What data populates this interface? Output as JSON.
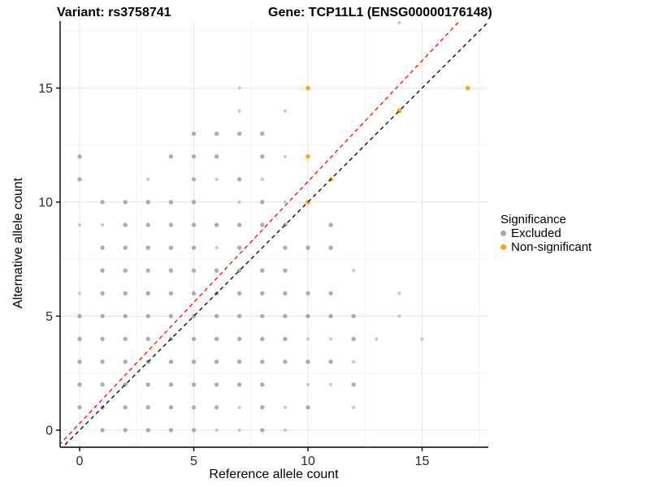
{
  "header": {
    "title_left": "Variant: rs3758741",
    "title_right": "Gene: TCP11L1 (ENSG00000176148)"
  },
  "axes": {
    "x_label": "Reference allele count",
    "y_label": "Alternative allele count",
    "x_ticks": [
      0,
      5,
      10,
      15
    ],
    "y_ticks": [
      0,
      5,
      10,
      15
    ]
  },
  "legend": {
    "title": "Significance",
    "items": [
      {
        "label": "Excluded",
        "color": "#a6a6a6"
      },
      {
        "label": "Non-significant",
        "color": "#FFA500"
      }
    ]
  },
  "colors": {
    "excluded": "#999999",
    "excluded_light": "#bcbcbc",
    "non_significant": "#FFA500",
    "identity_line": "#000000",
    "fit_line": "#FF0000",
    "grid_major": "#e4e4e4",
    "grid_minor": "#f2f2f2",
    "axis_line": "#000000",
    "tick_label": "#2b2b2b"
  },
  "chart_data": {
    "type": "scatter",
    "title": "Variant: rs3758741 — Gene: TCP11L1 (ENSG00000176148)",
    "xlabel": "Reference allele count",
    "ylabel": "Alternative allele count",
    "xlim": [
      -0.9,
      17.9
    ],
    "ylim": [
      -0.75,
      17.9
    ],
    "grid": "on",
    "legend_position": "right",
    "lines": [
      {
        "name": "identity",
        "slope": 1.0,
        "intercept": 0.0,
        "style": "dashed",
        "color": "#000000"
      },
      {
        "name": "fit",
        "slope": 1.06,
        "intercept": 0.3,
        "style": "dashed",
        "color": "#FF0000"
      }
    ],
    "series": [
      {
        "name": "Excluded",
        "points": [
          [
            1,
            0,
            "n"
          ],
          [
            2,
            0,
            "n"
          ],
          [
            3,
            0,
            "n"
          ],
          [
            4,
            0,
            "n"
          ],
          [
            5,
            0,
            "n"
          ],
          [
            6,
            0,
            "s"
          ],
          [
            7,
            0,
            "s"
          ],
          [
            8,
            0,
            "n"
          ],
          [
            9,
            0,
            "s"
          ],
          [
            0,
            1,
            "n"
          ],
          [
            1,
            1,
            "n"
          ],
          [
            2,
            1,
            "n"
          ],
          [
            3,
            1,
            "n"
          ],
          [
            4,
            1,
            "n"
          ],
          [
            5,
            1,
            "n"
          ],
          [
            6,
            1,
            "n"
          ],
          [
            7,
            1,
            "s"
          ],
          [
            8,
            1,
            "n"
          ],
          [
            9,
            1,
            "s"
          ],
          [
            10,
            1,
            "n"
          ],
          [
            12,
            1,
            "s"
          ],
          [
            0,
            2,
            "n"
          ],
          [
            1,
            2,
            "n"
          ],
          [
            2,
            2,
            "n"
          ],
          [
            3,
            2,
            "n"
          ],
          [
            4,
            2,
            "n"
          ],
          [
            5,
            2,
            "n"
          ],
          [
            6,
            2,
            "n"
          ],
          [
            7,
            2,
            "n"
          ],
          [
            8,
            2,
            "n"
          ],
          [
            10,
            2,
            "s"
          ],
          [
            11,
            2,
            "s"
          ],
          [
            12,
            2,
            "n"
          ],
          [
            0,
            3,
            "n"
          ],
          [
            1,
            3,
            "n"
          ],
          [
            2,
            3,
            "n"
          ],
          [
            3,
            3,
            "n"
          ],
          [
            4,
            3,
            "n"
          ],
          [
            5,
            3,
            "n"
          ],
          [
            6,
            3,
            "n"
          ],
          [
            7,
            3,
            "n"
          ],
          [
            8,
            3,
            "n"
          ],
          [
            9,
            3,
            "n"
          ],
          [
            10,
            3,
            "n"
          ],
          [
            11,
            3,
            "n"
          ],
          [
            12,
            3,
            "s"
          ],
          [
            0,
            4,
            "n"
          ],
          [
            1,
            4,
            "n"
          ],
          [
            2,
            4,
            "n"
          ],
          [
            3,
            4,
            "n"
          ],
          [
            4,
            4,
            "n"
          ],
          [
            5,
            4,
            "n"
          ],
          [
            6,
            4,
            "n"
          ],
          [
            7,
            4,
            "n"
          ],
          [
            8,
            4,
            "n"
          ],
          [
            9,
            4,
            "n"
          ],
          [
            10,
            4,
            "s"
          ],
          [
            11,
            4,
            "s"
          ],
          [
            12,
            4,
            "n"
          ],
          [
            13,
            4,
            "s"
          ],
          [
            15,
            4,
            "s"
          ],
          [
            0,
            5,
            "n"
          ],
          [
            1,
            5,
            "n"
          ],
          [
            2,
            5,
            "n"
          ],
          [
            3,
            5,
            "n"
          ],
          [
            4,
            5,
            "n"
          ],
          [
            5,
            5,
            "n"
          ],
          [
            6,
            5,
            "n"
          ],
          [
            7,
            5,
            "n"
          ],
          [
            8,
            5,
            "n"
          ],
          [
            9,
            5,
            "n"
          ],
          [
            10,
            5,
            "n"
          ],
          [
            11,
            5,
            "n"
          ],
          [
            12,
            5,
            "n"
          ],
          [
            14,
            5,
            "s"
          ],
          [
            0,
            6,
            "s"
          ],
          [
            1,
            6,
            "n"
          ],
          [
            2,
            6,
            "n"
          ],
          [
            3,
            6,
            "n"
          ],
          [
            4,
            6,
            "n"
          ],
          [
            5,
            6,
            "n"
          ],
          [
            6,
            6,
            "n"
          ],
          [
            7,
            6,
            "n"
          ],
          [
            8,
            6,
            "n"
          ],
          [
            9,
            6,
            "n"
          ],
          [
            10,
            6,
            "n"
          ],
          [
            11,
            6,
            "n"
          ],
          [
            14,
            6,
            "s"
          ],
          [
            1,
            7,
            "n"
          ],
          [
            2,
            7,
            "n"
          ],
          [
            3,
            7,
            "n"
          ],
          [
            4,
            7,
            "n"
          ],
          [
            5,
            7,
            "n"
          ],
          [
            6,
            7,
            "n"
          ],
          [
            7,
            7,
            "n"
          ],
          [
            8,
            7,
            "n"
          ],
          [
            9,
            7,
            "n"
          ],
          [
            12,
            7,
            "s"
          ],
          [
            1,
            8,
            "n"
          ],
          [
            2,
            8,
            "n"
          ],
          [
            3,
            8,
            "n"
          ],
          [
            4,
            8,
            "n"
          ],
          [
            5,
            8,
            "n"
          ],
          [
            6,
            8,
            "s"
          ],
          [
            7,
            8,
            "n"
          ],
          [
            9,
            8,
            "n"
          ],
          [
            10,
            8,
            "n"
          ],
          [
            11,
            8,
            "n"
          ],
          [
            0,
            9,
            "s"
          ],
          [
            1,
            9,
            "s"
          ],
          [
            2,
            9,
            "n"
          ],
          [
            3,
            9,
            "n"
          ],
          [
            4,
            9,
            "n"
          ],
          [
            5,
            9,
            "n"
          ],
          [
            6,
            9,
            "n"
          ],
          [
            7,
            9,
            "n"
          ],
          [
            8,
            9,
            "n"
          ],
          [
            9,
            9,
            "n"
          ],
          [
            11,
            9,
            "n"
          ],
          [
            1,
            10,
            "n"
          ],
          [
            2,
            10,
            "n"
          ],
          [
            3,
            10,
            "n"
          ],
          [
            4,
            10,
            "n"
          ],
          [
            5,
            10,
            "n"
          ],
          [
            7,
            10,
            "s"
          ],
          [
            8,
            10,
            "n"
          ],
          [
            9,
            10,
            "s"
          ],
          [
            0,
            11,
            "n"
          ],
          [
            3,
            11,
            "s"
          ],
          [
            5,
            11,
            "n"
          ],
          [
            6,
            11,
            "s"
          ],
          [
            7,
            11,
            "n"
          ],
          [
            8,
            11,
            "s"
          ],
          [
            0,
            12,
            "n"
          ],
          [
            4,
            12,
            "n"
          ],
          [
            5,
            12,
            "n"
          ],
          [
            6,
            12,
            "n"
          ],
          [
            8,
            12,
            "n"
          ],
          [
            9,
            12,
            "s"
          ],
          [
            5,
            13,
            "n"
          ],
          [
            6,
            13,
            "n"
          ],
          [
            7,
            13,
            "n"
          ],
          [
            8,
            13,
            "n"
          ],
          [
            7,
            14,
            "s"
          ],
          [
            9,
            14,
            "s"
          ],
          [
            7,
            15,
            "s"
          ],
          [
            14,
            17.9,
            "s"
          ]
        ]
      },
      {
        "name": "Non-significant",
        "points": [
          [
            10,
            10,
            "n"
          ],
          [
            11,
            11,
            "n"
          ],
          [
            10,
            12,
            "n"
          ],
          [
            14,
            14,
            "n"
          ],
          [
            10,
            15,
            "n"
          ],
          [
            17,
            15,
            "n"
          ]
        ]
      }
    ]
  }
}
